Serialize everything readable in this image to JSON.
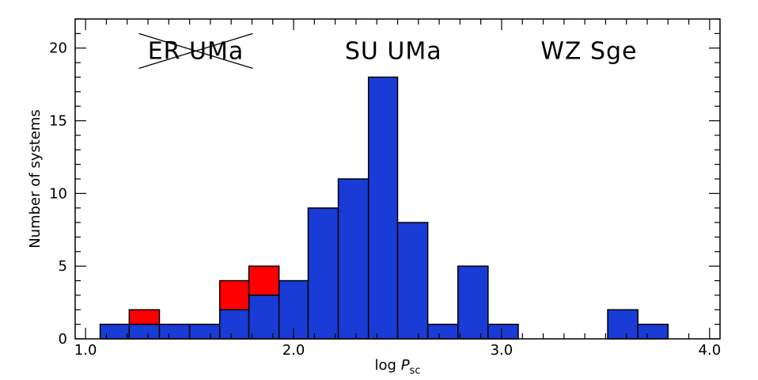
{
  "chart_data": {
    "type": "bar",
    "subtype": "stacked-histogram",
    "xlabel": {
      "prefix": "log ",
      "symbol": "P",
      "subscript": "sc"
    },
    "ylabel": "Number of systems",
    "xlim": [
      0.95,
      4.05
    ],
    "ylim": [
      0,
      22
    ],
    "x_ticks": [
      1.0,
      2.0,
      3.0,
      4.0
    ],
    "x_tick_labels": [
      "1.0",
      "2.0",
      "3.0",
      "4.0"
    ],
    "y_ticks": [
      0,
      5,
      10,
      15,
      20
    ],
    "y_tick_labels": [
      "0",
      "5",
      "10",
      "15",
      "20"
    ],
    "bin_edges": [
      1.07,
      1.21,
      1.355,
      1.5,
      1.645,
      1.785,
      1.93,
      2.07,
      2.215,
      2.36,
      2.5,
      2.645,
      2.79,
      2.935,
      3.08,
      3.225,
      3.37,
      3.51,
      3.655,
      3.8
    ],
    "series": [
      {
        "name": "",
        "color": "#1a3cd6",
        "values": [
          1,
          1,
          1,
          1,
          2,
          3,
          4,
          9,
          11,
          18,
          8,
          1,
          5,
          1,
          0,
          0,
          0,
          2,
          1
        ]
      },
      {
        "name": "",
        "color": "#ff0000",
        "values": [
          0,
          1,
          0,
          0,
          2,
          2,
          0,
          0,
          0,
          0,
          0,
          0,
          0,
          0,
          0,
          0,
          0,
          0,
          0
        ]
      }
    ],
    "annotations": [
      {
        "text": "ER UMa",
        "x": 1.53,
        "y": 19.8,
        "crossed_out": true
      },
      {
        "text": "SU UMa",
        "x": 2.48,
        "y": 19.8,
        "crossed_out": false
      },
      {
        "text": "WZ Sge",
        "x": 3.42,
        "y": 19.8,
        "crossed_out": false
      }
    ],
    "grid": false,
    "legend": "none"
  }
}
